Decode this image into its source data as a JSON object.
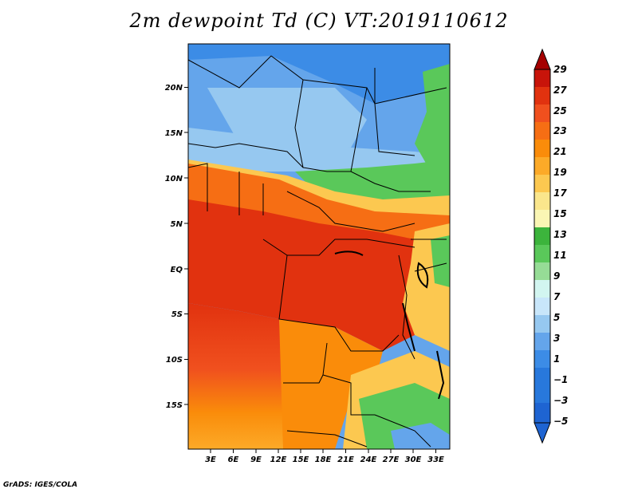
{
  "title": "2m dewpoint Td (C) VT:2019110612",
  "credit": "GrADS: IGES/COLA",
  "map": {
    "lat_ticks": [
      "20N",
      "15N",
      "10N",
      "5N",
      "EQ",
      "5S",
      "10S",
      "15S"
    ],
    "lon_ticks": [
      "3E",
      "6E",
      "9E",
      "12E",
      "15E",
      "18E",
      "21E",
      "24E",
      "27E",
      "30E",
      "33E"
    ]
  },
  "colorbar": {
    "labels": [
      "29",
      "27",
      "25",
      "23",
      "21",
      "19",
      "17",
      "15",
      "13",
      "11",
      "9",
      "7",
      "5",
      "3",
      "1",
      "−1",
      "−3",
      "−5"
    ],
    "colors": [
      "#a50000",
      "#c8140a",
      "#e1320f",
      "#f0501e",
      "#f66e14",
      "#fa8c0a",
      "#fcaa28",
      "#fcc850",
      "#fae68c",
      "#faf6b4",
      "#3cb43c",
      "#5ac85a",
      "#96dc96",
      "#d2f5f0",
      "#c8e6fa",
      "#96c8f0",
      "#64a5eb",
      "#3c8ce6",
      "#2878dc",
      "#1e64d2"
    ]
  }
}
